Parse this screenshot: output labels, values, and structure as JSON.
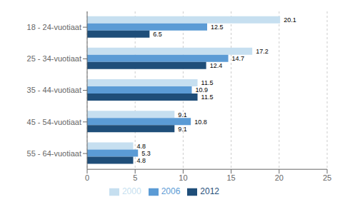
{
  "chart_data": {
    "type": "bar",
    "orientation": "horizontal",
    "categories": [
      "18 - 24-vuotiaat",
      "25 - 34-vuotiaat",
      "35 - 44-vuotiaat",
      "45 - 54-vuotiaat",
      "55 - 64-vuotiaat"
    ],
    "series": [
      {
        "name": "2000",
        "color": "#c6dff0",
        "values": [
          20.1,
          17.2,
          11.5,
          9.1,
          4.8
        ]
      },
      {
        "name": "2006",
        "color": "#5b9bd5",
        "values": [
          12.5,
          14.7,
          10.9,
          10.8,
          5.3
        ]
      },
      {
        "name": "2012",
        "color": "#1f4e79",
        "values": [
          6.5,
          12.4,
          11.5,
          9.1,
          4.8
        ]
      }
    ],
    "xlim": [
      0,
      25
    ],
    "xticks": [
      0,
      5,
      10,
      15,
      20,
      25
    ],
    "grid": true,
    "data_labels": true,
    "legend": "bottom"
  }
}
